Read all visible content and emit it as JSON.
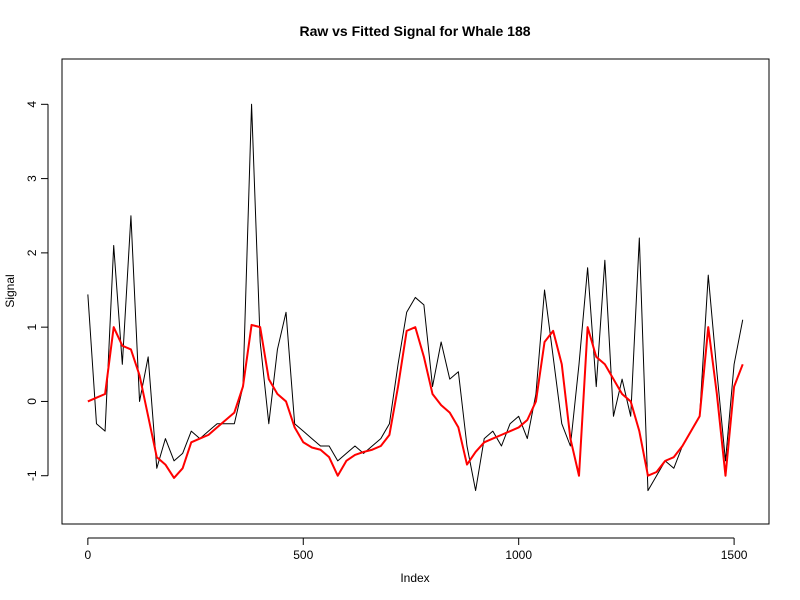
{
  "chart_data": {
    "type": "line",
    "title": "Raw vs Fitted Signal for Whale 188",
    "xlabel": "Index",
    "ylabel": "Signal",
    "x": [
      0,
      20,
      40,
      60,
      80,
      100,
      120,
      140,
      160,
      180,
      200,
      220,
      240,
      260,
      280,
      300,
      320,
      340,
      360,
      380,
      400,
      420,
      440,
      460,
      480,
      500,
      520,
      540,
      560,
      580,
      600,
      620,
      640,
      660,
      680,
      700,
      720,
      740,
      760,
      780,
      800,
      820,
      840,
      860,
      880,
      900,
      920,
      940,
      960,
      980,
      1000,
      1020,
      1040,
      1060,
      1080,
      1100,
      1120,
      1140,
      1160,
      1180,
      1200,
      1220,
      1240,
      1260,
      1280,
      1300,
      1320,
      1340,
      1360,
      1380,
      1400,
      1420,
      1440,
      1460,
      1480,
      1500,
      1520
    ],
    "series": [
      {
        "color": "#000000",
        "width": 1,
        "values": [
          1.44,
          -0.3,
          -0.4,
          2.1,
          0.5,
          2.5,
          0.0,
          0.6,
          -0.9,
          -0.5,
          -0.8,
          -0.7,
          -0.4,
          -0.5,
          -0.4,
          -0.3,
          -0.3,
          -0.3,
          0.2,
          4.0,
          0.8,
          -0.3,
          0.7,
          1.2,
          -0.3,
          -0.4,
          -0.5,
          -0.6,
          -0.6,
          -0.8,
          -0.7,
          -0.6,
          -0.7,
          -0.6,
          -0.5,
          -0.3,
          0.5,
          1.2,
          1.4,
          1.3,
          0.2,
          0.8,
          0.3,
          0.4,
          -0.6,
          -1.2,
          -0.5,
          -0.4,
          -0.6,
          -0.3,
          -0.2,
          -0.5,
          0.1,
          1.5,
          0.6,
          -0.3,
          -0.6,
          0.5,
          1.8,
          0.2,
          1.9,
          -0.2,
          0.3,
          -0.2,
          2.2,
          -1.2,
          -1.0,
          -0.8,
          -0.9,
          -0.6,
          -0.4,
          -0.2,
          1.7,
          0.4,
          -0.8,
          0.5,
          1.1
        ]
      },
      {
        "color": "#ff0000",
        "width": 2,
        "values": [
          0.0,
          0.05,
          0.1,
          1.0,
          0.75,
          0.7,
          0.35,
          -0.2,
          -0.75,
          -0.85,
          -1.03,
          -0.9,
          -0.55,
          -0.5,
          -0.45,
          -0.35,
          -0.25,
          -0.15,
          0.2,
          1.03,
          1.0,
          0.3,
          0.1,
          0.0,
          -0.35,
          -0.55,
          -0.62,
          -0.65,
          -0.75,
          -1.0,
          -0.8,
          -0.72,
          -0.68,
          -0.65,
          -0.6,
          -0.45,
          0.2,
          0.95,
          1.0,
          0.6,
          0.1,
          -0.05,
          -0.15,
          -0.35,
          -0.85,
          -0.68,
          -0.55,
          -0.5,
          -0.45,
          -0.4,
          -0.35,
          -0.25,
          0.0,
          0.8,
          0.95,
          0.5,
          -0.5,
          -1.0,
          1.0,
          0.6,
          0.5,
          0.3,
          0.1,
          0.0,
          -0.4,
          -1.0,
          -0.95,
          -0.8,
          -0.75,
          -0.6,
          -0.4,
          -0.2,
          1.0,
          0.1,
          -1.0,
          0.2,
          0.5
        ]
      }
    ],
    "xlim": [
      -60,
      1581
    ],
    "ylim": [
      -1.65,
      4.61
    ],
    "xticks": [
      0,
      500,
      1000,
      1500
    ],
    "yticks": [
      -1,
      0,
      1,
      2,
      3,
      4
    ]
  }
}
